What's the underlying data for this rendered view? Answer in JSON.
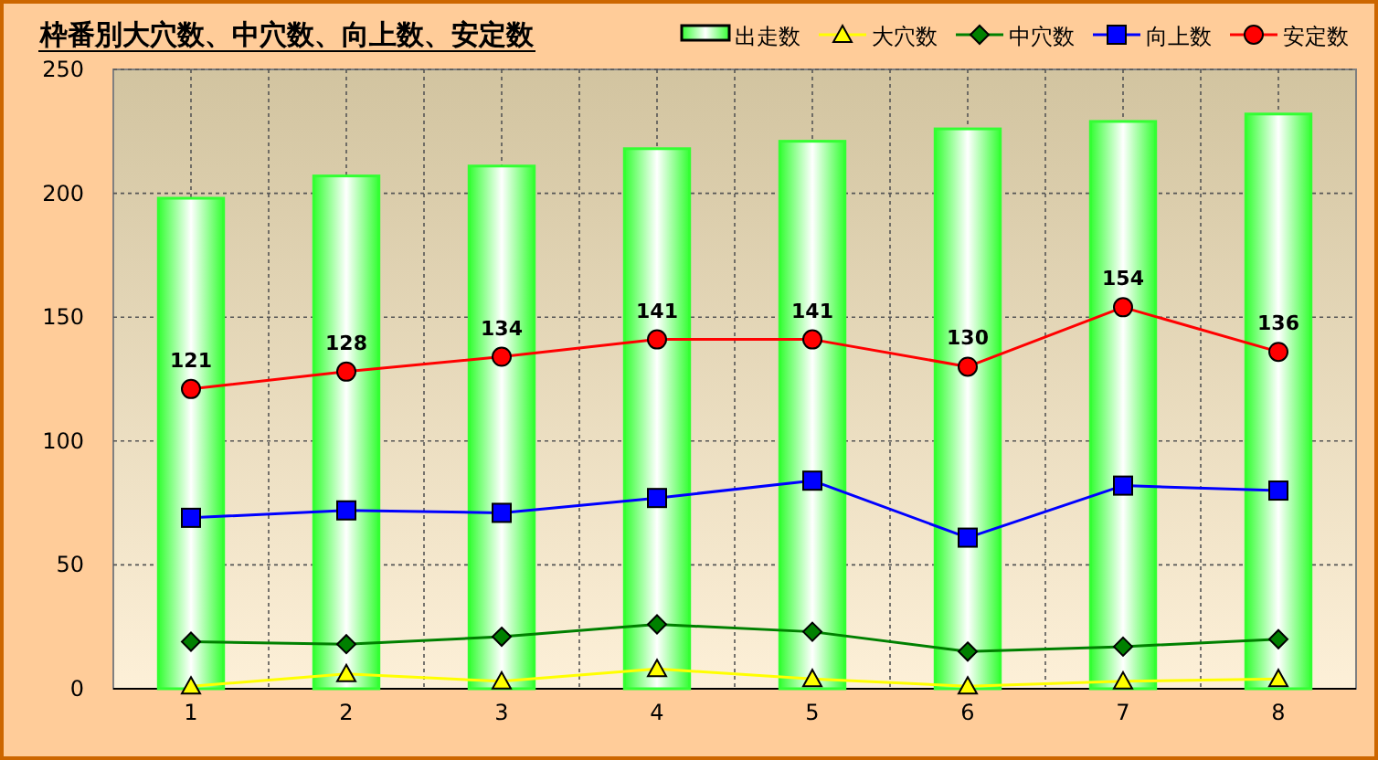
{
  "chart_data": {
    "type": "bar",
    "title": "枠番別大穴数、中穴数、向上数、安定数",
    "categories": [
      "1",
      "2",
      "3",
      "4",
      "5",
      "6",
      "7",
      "8"
    ],
    "series": [
      {
        "name": "出走数",
        "color": "#33ff33",
        "values": [
          198,
          207,
          211,
          218,
          221,
          226,
          229,
          232
        ]
      },
      {
        "name": "大穴数",
        "type": "line",
        "marker": "triangle",
        "color": "#ffff00",
        "values": [
          1,
          6,
          3,
          8,
          4,
          1,
          3,
          4
        ]
      },
      {
        "name": "中穴数",
        "type": "line",
        "marker": "diamond",
        "color": "#008000",
        "values": [
          19,
          18,
          21,
          26,
          23,
          15,
          17,
          20
        ]
      },
      {
        "name": "向上数",
        "type": "line",
        "marker": "square",
        "color": "#0000ff",
        "values": [
          69,
          72,
          71,
          77,
          84,
          61,
          82,
          80
        ]
      },
      {
        "name": "安定数",
        "type": "line",
        "marker": "circle",
        "color": "#ff0000",
        "values": [
          121,
          128,
          134,
          141,
          141,
          130,
          154,
          136
        ],
        "value_labels": [
          "121",
          "128",
          "134",
          "141",
          "141",
          "130",
          "154",
          "136"
        ]
      }
    ],
    "ylim": [
      0,
      250
    ],
    "yticks": [
      0,
      50,
      100,
      150,
      200,
      250
    ],
    "grid": true,
    "legend": "top right"
  }
}
